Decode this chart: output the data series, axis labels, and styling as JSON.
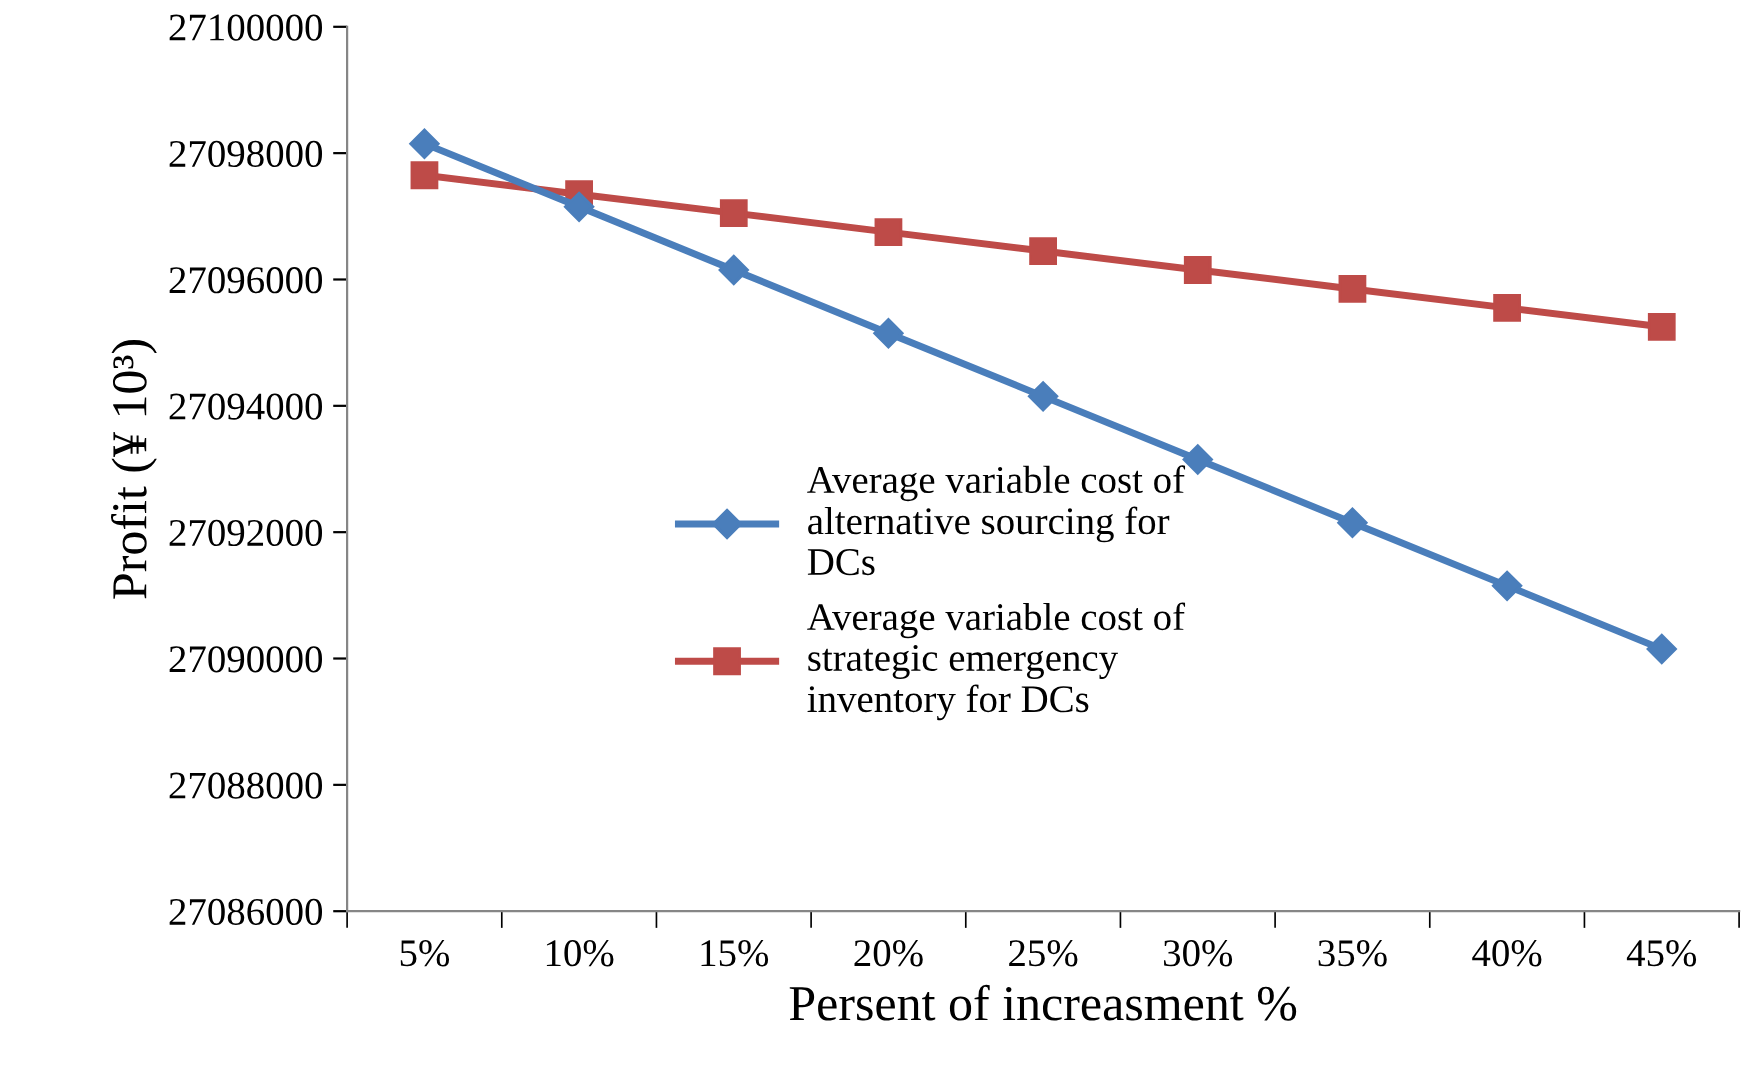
{
  "chart_data": {
    "type": "line",
    "xlabel": "Persent of increasment %",
    "ylabel": "Profit (¥ 10³)",
    "categories": [
      "5%",
      "10%",
      "15%",
      "20%",
      "25%",
      "30%",
      "35%",
      "40%",
      "45%"
    ],
    "series": [
      {
        "name": "Average variable cost of alternative sourcing for DCs",
        "color": "#4a7ebb",
        "marker": "diamond",
        "values": [
          27098150,
          27097150,
          27096150,
          27095150,
          27094150,
          27093150,
          27092150,
          27091150,
          27090150
        ]
      },
      {
        "name": "Average variable cost of strategic emergency inventory for DCs",
        "color": "#be4b48",
        "marker": "square",
        "values": [
          27097650,
          27097350,
          27097050,
          27096750,
          27096450,
          27096150,
          27095850,
          27095550,
          27095250
        ]
      }
    ],
    "ylim": [
      27086000,
      27100000
    ],
    "yticks": [
      27086000,
      27088000,
      27090000,
      27092000,
      27094000,
      27096000,
      27098000,
      27100000
    ],
    "grid": false,
    "legend": "center"
  }
}
